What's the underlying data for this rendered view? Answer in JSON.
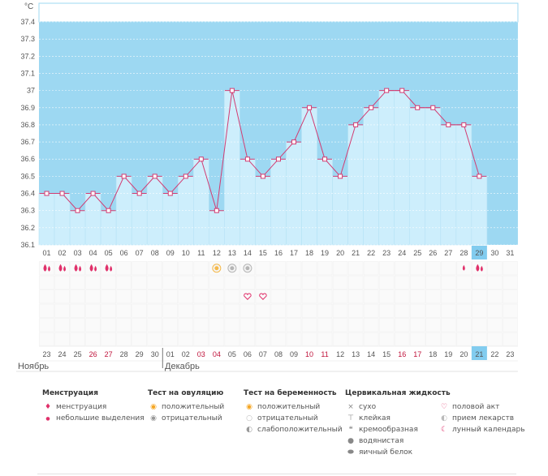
{
  "chart_data": {
    "type": "bar",
    "unit": "°C",
    "ylim": [
      36.1,
      37.4
    ],
    "yticks": [
      "36.1",
      "36.2",
      "36.3",
      "36.4",
      "36.5",
      "36.6",
      "36.7",
      "36.8",
      "36.9",
      "37",
      "37.1",
      "37.2",
      "37.3",
      "37.4"
    ],
    "cycle_days": [
      "01",
      "02",
      "03",
      "04",
      "05",
      "06",
      "07",
      "08",
      "09",
      "10",
      "11",
      "12",
      "13",
      "14",
      "15",
      "16",
      "17",
      "18",
      "19",
      "20",
      "21",
      "22",
      "23",
      "24",
      "25",
      "26",
      "27",
      "28",
      "29",
      "30",
      "31"
    ],
    "temperatures": [
      36.4,
      36.4,
      36.3,
      36.4,
      36.3,
      36.5,
      36.4,
      36.5,
      36.4,
      36.5,
      36.6,
      36.3,
      37.0,
      36.6,
      36.5,
      36.6,
      36.7,
      36.9,
      36.6,
      36.5,
      36.8,
      36.9,
      37.0,
      37.0,
      36.9,
      36.9,
      36.8,
      36.8,
      36.5
    ],
    "current_day_index": 28,
    "dates": [
      "23",
      "24",
      "25",
      "26",
      "27",
      "28",
      "29",
      "30",
      "01",
      "02",
      "03",
      "04",
      "05",
      "06",
      "07",
      "08",
      "09",
      "10",
      "11",
      "12",
      "13",
      "14",
      "15",
      "16",
      "17",
      "18",
      "19",
      "20",
      "21",
      "22",
      "23"
    ],
    "date_colors": [
      "#555",
      "#555",
      "#555",
      "#c0143c",
      "#c0143c",
      "#555",
      "#555",
      "#555",
      "#555",
      "#555",
      "#c0143c",
      "#c0143c",
      "#555",
      "#555",
      "#555",
      "#555",
      "#555",
      "#c0143c",
      "#c0143c",
      "#555",
      "#555",
      "#555",
      "#555",
      "#c0143c",
      "#c0143c",
      "#555",
      "#555",
      "#555",
      "#555",
      "#555",
      "#555"
    ],
    "menstruation": [
      2,
      2,
      2,
      2,
      2,
      0,
      0,
      0,
      0,
      0,
      0,
      0,
      0,
      0,
      0,
      0,
      0,
      0,
      0,
      0,
      0,
      0,
      0,
      0,
      0,
      0,
      0,
      1,
      2,
      0,
      0
    ],
    "ovulation_test": [
      0,
      0,
      0,
      0,
      0,
      0,
      0,
      0,
      0,
      0,
      0,
      1,
      2,
      2,
      0,
      0,
      0,
      0,
      0,
      0,
      0,
      0,
      0,
      0,
      0,
      0,
      0,
      0,
      0,
      0,
      0
    ],
    "intercourse": [
      0,
      0,
      0,
      0,
      0,
      0,
      0,
      0,
      0,
      0,
      0,
      0,
      0,
      1,
      1,
      0,
      0,
      0,
      0,
      0,
      0,
      0,
      0,
      0,
      0,
      0,
      0,
      0,
      0,
      0,
      0
    ]
  },
  "months": {
    "first": "Ноябрь",
    "second": "Декабрь"
  },
  "colors": {
    "bg": "#9dd8f2",
    "bar": "#cdeefc",
    "line": "#d23c72",
    "today": "#82ccef"
  },
  "legend": {
    "menstruation": {
      "title": "Менструация",
      "items": [
        "менструация",
        "небольшие выделения"
      ]
    },
    "ovulation": {
      "title": "Тест на овуляцию",
      "items": [
        "положительный",
        "отрицательный"
      ]
    },
    "pregnancy": {
      "title": "Тест на беременность",
      "items": [
        "положительный",
        "отрицательный",
        "слабоположительный"
      ]
    },
    "cervical": {
      "title": "Цервикальная жидкость",
      "items": [
        "сухо",
        "клейкая",
        "кремообразная",
        "водянистая",
        "яичный белок"
      ]
    },
    "other": {
      "items": [
        "половой акт",
        "прием лекарств",
        "лунный календарь"
      ]
    }
  }
}
